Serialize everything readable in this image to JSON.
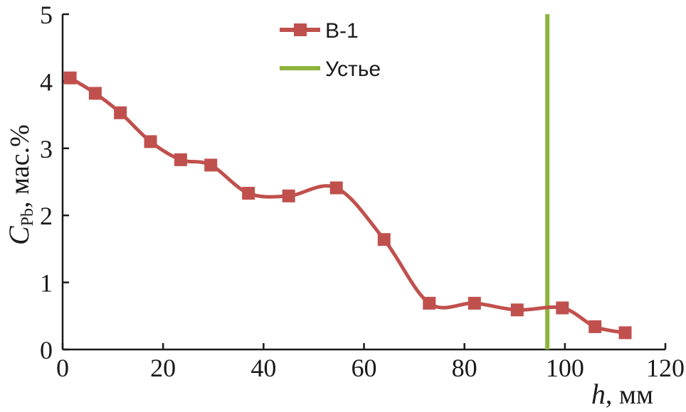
{
  "chart_data": {
    "type": "line",
    "x": [
      1.5,
      6.5,
      11.5,
      17.5,
      23.5,
      29.5,
      37,
      45,
      54.5,
      64,
      73,
      82,
      90.5,
      99.5,
      106,
      112
    ],
    "series": [
      {
        "name": "В-1",
        "color": "#c0504d",
        "marker": "square",
        "values": [
          4.05,
          3.82,
          3.53,
          3.1,
          2.83,
          2.75,
          2.33,
          2.29,
          2.41,
          1.64,
          0.69,
          0.69,
          0.59,
          0.62,
          0.34,
          0.25
        ]
      }
    ],
    "reference_lines": [
      {
        "name": "Устье",
        "x": 96.5,
        "color": "#8db43c",
        "orientation": "vertical"
      }
    ],
    "xlim": [
      0,
      120
    ],
    "ylim": [
      0,
      5
    ],
    "xticks": [
      "0",
      "20",
      "40",
      "60",
      "80",
      "100",
      "120"
    ],
    "yticks": [
      "0",
      "1",
      "2",
      "3",
      "4",
      "5"
    ],
    "xlabel": {
      "var": "h",
      "rest": ", мм"
    },
    "ylabel": {
      "var": "C",
      "sub": "Pb",
      "rest": ", мас.%"
    },
    "grid": false,
    "legend_position": "top-center"
  }
}
